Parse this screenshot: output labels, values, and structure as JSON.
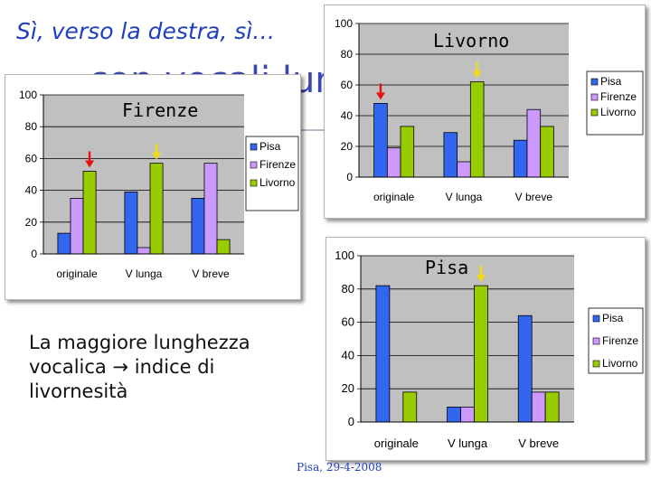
{
  "slide": {
    "title": "Sì, verso la destra, sì…",
    "hidden_title": "… con vocali lunghe",
    "body_text_before": "La maggiore lunghezza vocalica",
    "arrow_glyph": "→",
    "body_text_after": "indice di livornesità",
    "footer": "Pisa, 29-4-2008"
  },
  "legend_order": [
    "Pisa",
    "Firenze",
    "Livorno"
  ],
  "colors": {
    "Pisa": "#3366ee",
    "Firenze": "#cc99ff",
    "Livorno": "#99cc00",
    "plot_bg": "#c0c0c0",
    "red_arrow": "#e81010",
    "yellow_arrow": "#f2dc10"
  },
  "chart_data": [
    {
      "type": "bar",
      "title": "Firenze",
      "categories": [
        "originale",
        "V lunga",
        "V breve"
      ],
      "series": [
        {
          "name": "Pisa",
          "values": [
            13,
            39,
            35
          ]
        },
        {
          "name": "Firenze",
          "values": [
            35,
            4,
            57
          ]
        },
        {
          "name": "Livorno",
          "values": [
            52,
            57,
            9
          ]
        }
      ],
      "ylim": [
        0,
        100
      ],
      "yticks": [
        0,
        20,
        40,
        60,
        80,
        100
      ],
      "grid": true,
      "legend": "right",
      "arrows": [
        {
          "category": "originale",
          "series": "Livorno",
          "color": "red"
        },
        {
          "category": "V lunga",
          "series": "Livorno",
          "color": "yellow"
        }
      ]
    },
    {
      "type": "bar",
      "title": "Livorno",
      "categories": [
        "originale",
        "V lunga",
        "V breve"
      ],
      "series": [
        {
          "name": "Pisa",
          "values": [
            48,
            29,
            24
          ]
        },
        {
          "name": "Firenze",
          "values": [
            19,
            10,
            44
          ]
        },
        {
          "name": "Livorno",
          "values": [
            33,
            62,
            33
          ]
        }
      ],
      "ylim": [
        0,
        100
      ],
      "yticks": [
        0,
        20,
        40,
        60,
        80,
        100
      ],
      "grid": true,
      "legend": "right",
      "arrows": [
        {
          "category": "originale",
          "series": "Pisa",
          "color": "red"
        },
        {
          "category": "V lunga",
          "series": "Livorno",
          "color": "yellow"
        }
      ]
    },
    {
      "type": "bar",
      "title": "Pisa",
      "categories": [
        "originale",
        "V lunga",
        "V breve"
      ],
      "series": [
        {
          "name": "Pisa",
          "values": [
            82,
            9,
            64
          ]
        },
        {
          "name": "Firenze",
          "values": [
            0,
            9,
            18
          ]
        },
        {
          "name": "Livorno",
          "values": [
            18,
            82,
            18
          ]
        }
      ],
      "ylim": [
        0,
        100
      ],
      "yticks": [
        0,
        20,
        40,
        60,
        80,
        100
      ],
      "grid": true,
      "legend": "right",
      "arrows": [
        {
          "category": "V lunga",
          "series": "Livorno",
          "color": "yellow"
        }
      ]
    }
  ]
}
